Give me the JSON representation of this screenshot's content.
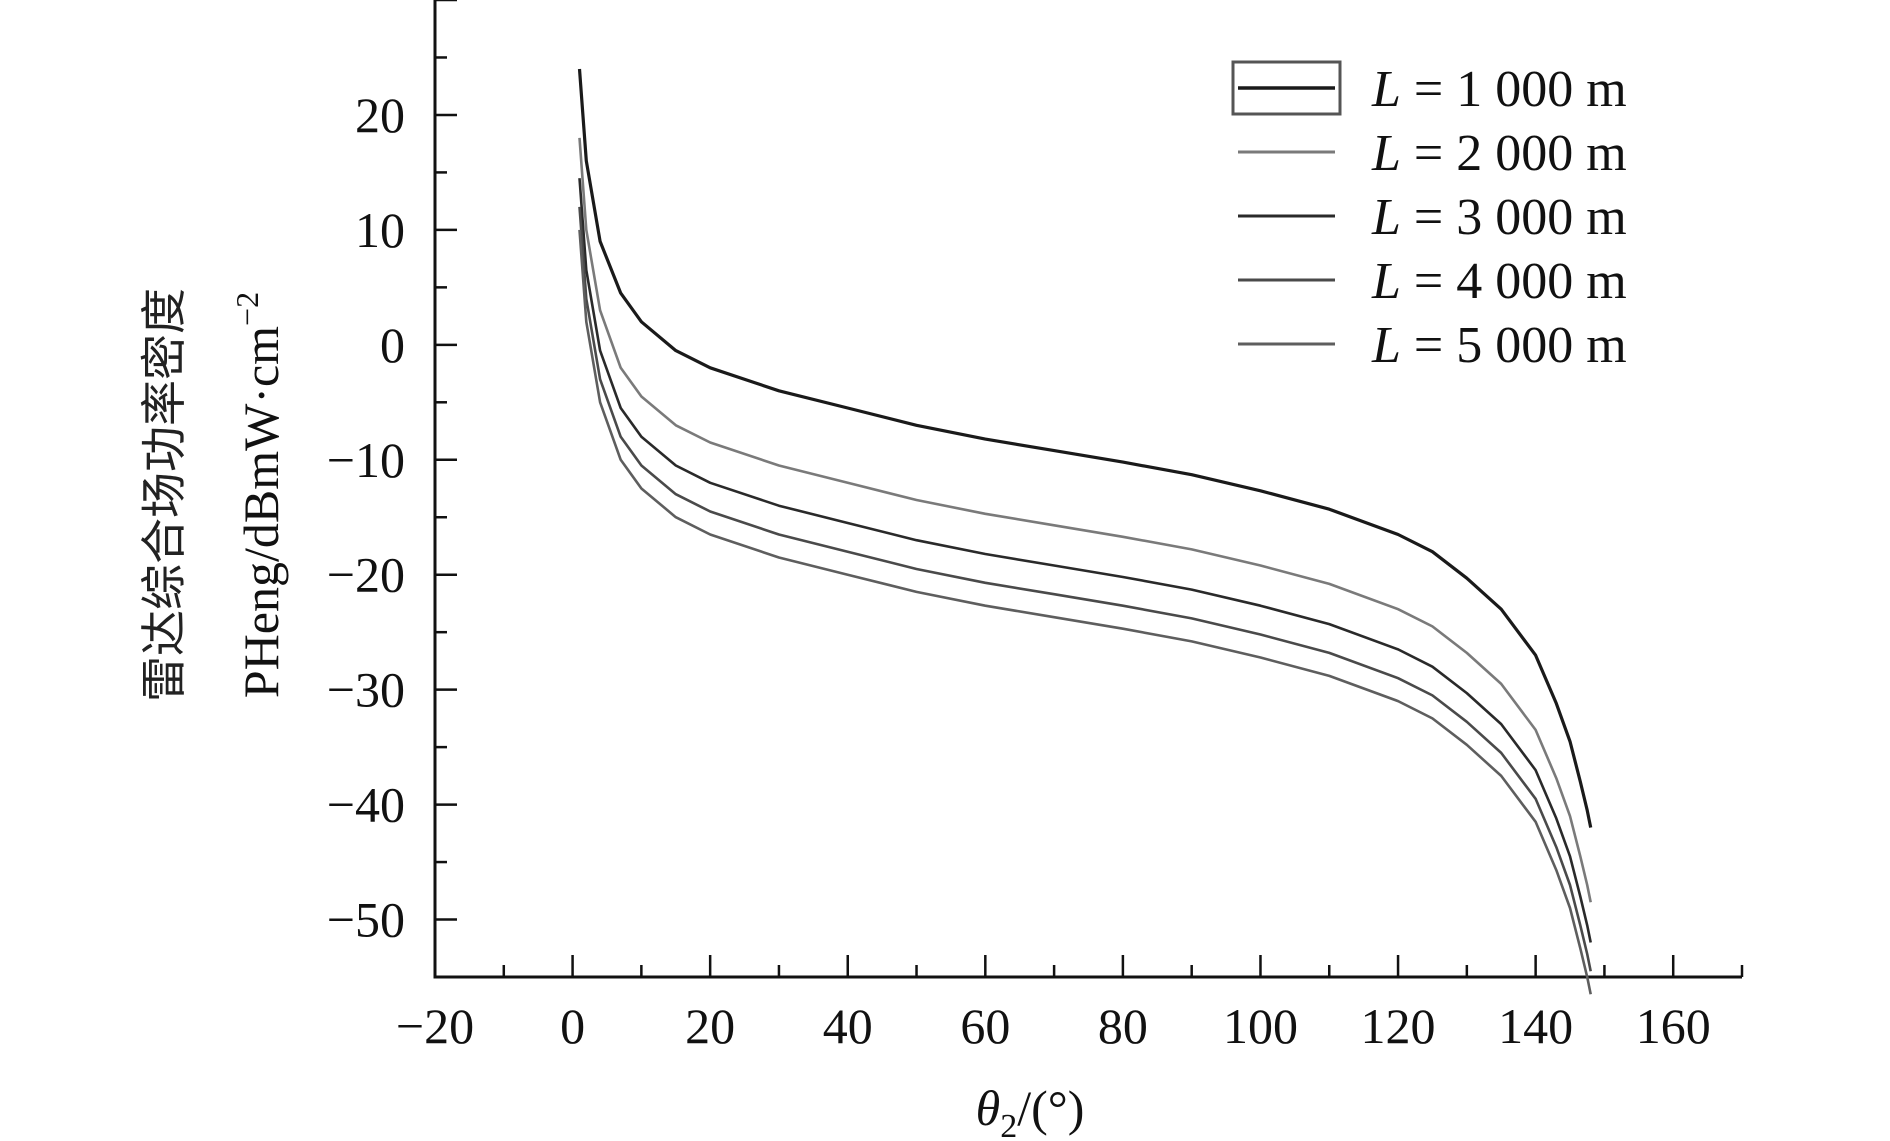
{
  "chart_data": {
    "type": "line",
    "title": "",
    "xlabel": {
      "symbol": "θ",
      "sub": "2",
      "unit": "/(°)"
    },
    "ylabel": {
      "line1": "雷达综合场功率密度",
      "line2": "PHeng/dBmW·cm",
      "line2_sup": "−2"
    },
    "xlim": [
      -20,
      170
    ],
    "ylim": [
      -55,
      30
    ],
    "xticks": [
      {
        "value": -20,
        "label": "−20"
      },
      {
        "value": 0,
        "label": "0"
      },
      {
        "value": 20,
        "label": "20"
      },
      {
        "value": 40,
        "label": "40"
      },
      {
        "value": 60,
        "label": "60"
      },
      {
        "value": 80,
        "label": "80"
      },
      {
        "value": 100,
        "label": "100"
      },
      {
        "value": 120,
        "label": "120"
      },
      {
        "value": 140,
        "label": "140"
      },
      {
        "value": 160,
        "label": "160"
      }
    ],
    "yticks": [
      {
        "value": 20,
        "label": "20"
      },
      {
        "value": 10,
        "label": "10"
      },
      {
        "value": 0,
        "label": "0"
      },
      {
        "value": -10,
        "label": "−10"
      },
      {
        "value": -20,
        "label": "−20"
      },
      {
        "value": -30,
        "label": "−30"
      },
      {
        "value": -40,
        "label": "−40"
      },
      {
        "value": -50,
        "label": "−50"
      }
    ],
    "grid": false,
    "legend_position": "top-right",
    "series": [
      {
        "name": "L = 1 000 m",
        "name_var": "L",
        "name_rest": " = 1 000 m",
        "color": "#1a1a1a",
        "x": [
          1,
          2,
          4,
          7,
          10,
          15,
          20,
          30,
          40,
          50,
          60,
          70,
          80,
          90,
          100,
          110,
          120,
          125,
          130,
          135,
          140,
          143,
          145,
          146.5,
          147.5,
          148
        ],
        "y": [
          24,
          16,
          9,
          4.5,
          2,
          -0.5,
          -2,
          -4,
          -5.5,
          -7,
          -8.2,
          -9.2,
          -10.2,
          -11.3,
          -12.7,
          -14.3,
          -16.5,
          -18,
          -20.3,
          -23,
          -27,
          -31.2,
          -34.5,
          -38,
          -40.5,
          -42
        ]
      },
      {
        "name": "L = 2 000 m",
        "name_var": "L",
        "name_rest": " = 2 000 m",
        "color": "#7a7a7a",
        "x": [
          1,
          2,
          4,
          7,
          10,
          15,
          20,
          30,
          40,
          50,
          60,
          70,
          80,
          90,
          100,
          110,
          120,
          125,
          130,
          135,
          140,
          143,
          145,
          146.5,
          147.5,
          148
        ],
        "y": [
          18,
          10,
          3,
          -2,
          -4.5,
          -7,
          -8.5,
          -10.5,
          -12,
          -13.5,
          -14.7,
          -15.7,
          -16.7,
          -17.8,
          -19.2,
          -20.8,
          -23,
          -24.5,
          -26.8,
          -29.5,
          -33.5,
          -37.7,
          -41,
          -44.5,
          -47,
          -48.5
        ]
      },
      {
        "name": "L = 3 000 m",
        "name_var": "L",
        "name_rest": " = 3 000 m",
        "color": "#2a2a2a",
        "x": [
          1,
          2,
          4,
          7,
          10,
          15,
          20,
          30,
          40,
          50,
          60,
          70,
          80,
          90,
          100,
          110,
          120,
          125,
          130,
          135,
          140,
          143,
          145,
          146.5,
          147.5,
          148
        ],
        "y": [
          14.5,
          6.5,
          -0.5,
          -5.5,
          -8,
          -10.5,
          -12,
          -14,
          -15.5,
          -17,
          -18.2,
          -19.2,
          -20.2,
          -21.3,
          -22.7,
          -24.3,
          -26.5,
          -28,
          -30.3,
          -33,
          -37,
          -41.2,
          -44.5,
          -48,
          -50.5,
          -52
        ]
      },
      {
        "name": "L = 4 000 m",
        "name_var": "L",
        "name_rest": " = 4 000 m",
        "color": "#4a4a4a",
        "x": [
          1,
          2,
          4,
          7,
          10,
          15,
          20,
          30,
          40,
          50,
          60,
          70,
          80,
          90,
          100,
          110,
          120,
          125,
          130,
          135,
          140,
          143,
          145,
          146.5,
          147.5,
          148
        ],
        "y": [
          12,
          4,
          -3,
          -8,
          -10.5,
          -13,
          -14.5,
          -16.5,
          -18,
          -19.5,
          -20.7,
          -21.7,
          -22.7,
          -23.8,
          -25.2,
          -26.8,
          -29,
          -30.5,
          -32.8,
          -35.5,
          -39.5,
          -43.7,
          -47,
          -50.5,
          -53,
          -54.5
        ]
      },
      {
        "name": "L = 5 000 m",
        "name_var": "L",
        "name_rest": " = 5 000 m",
        "color": "#5e5e5e",
        "x": [
          1,
          2,
          4,
          7,
          10,
          15,
          20,
          30,
          40,
          50,
          60,
          70,
          80,
          90,
          100,
          110,
          120,
          125,
          130,
          135,
          140,
          143,
          145,
          146.5,
          147.5,
          148
        ],
        "y": [
          10,
          2,
          -5,
          -10,
          -12.5,
          -15,
          -16.5,
          -18.5,
          -20,
          -21.5,
          -22.7,
          -23.7,
          -24.7,
          -25.8,
          -27.2,
          -28.8,
          -31,
          -32.5,
          -34.8,
          -37.5,
          -41.5,
          -45.7,
          -49,
          -52.5,
          -55,
          -56.5
        ]
      }
    ]
  }
}
